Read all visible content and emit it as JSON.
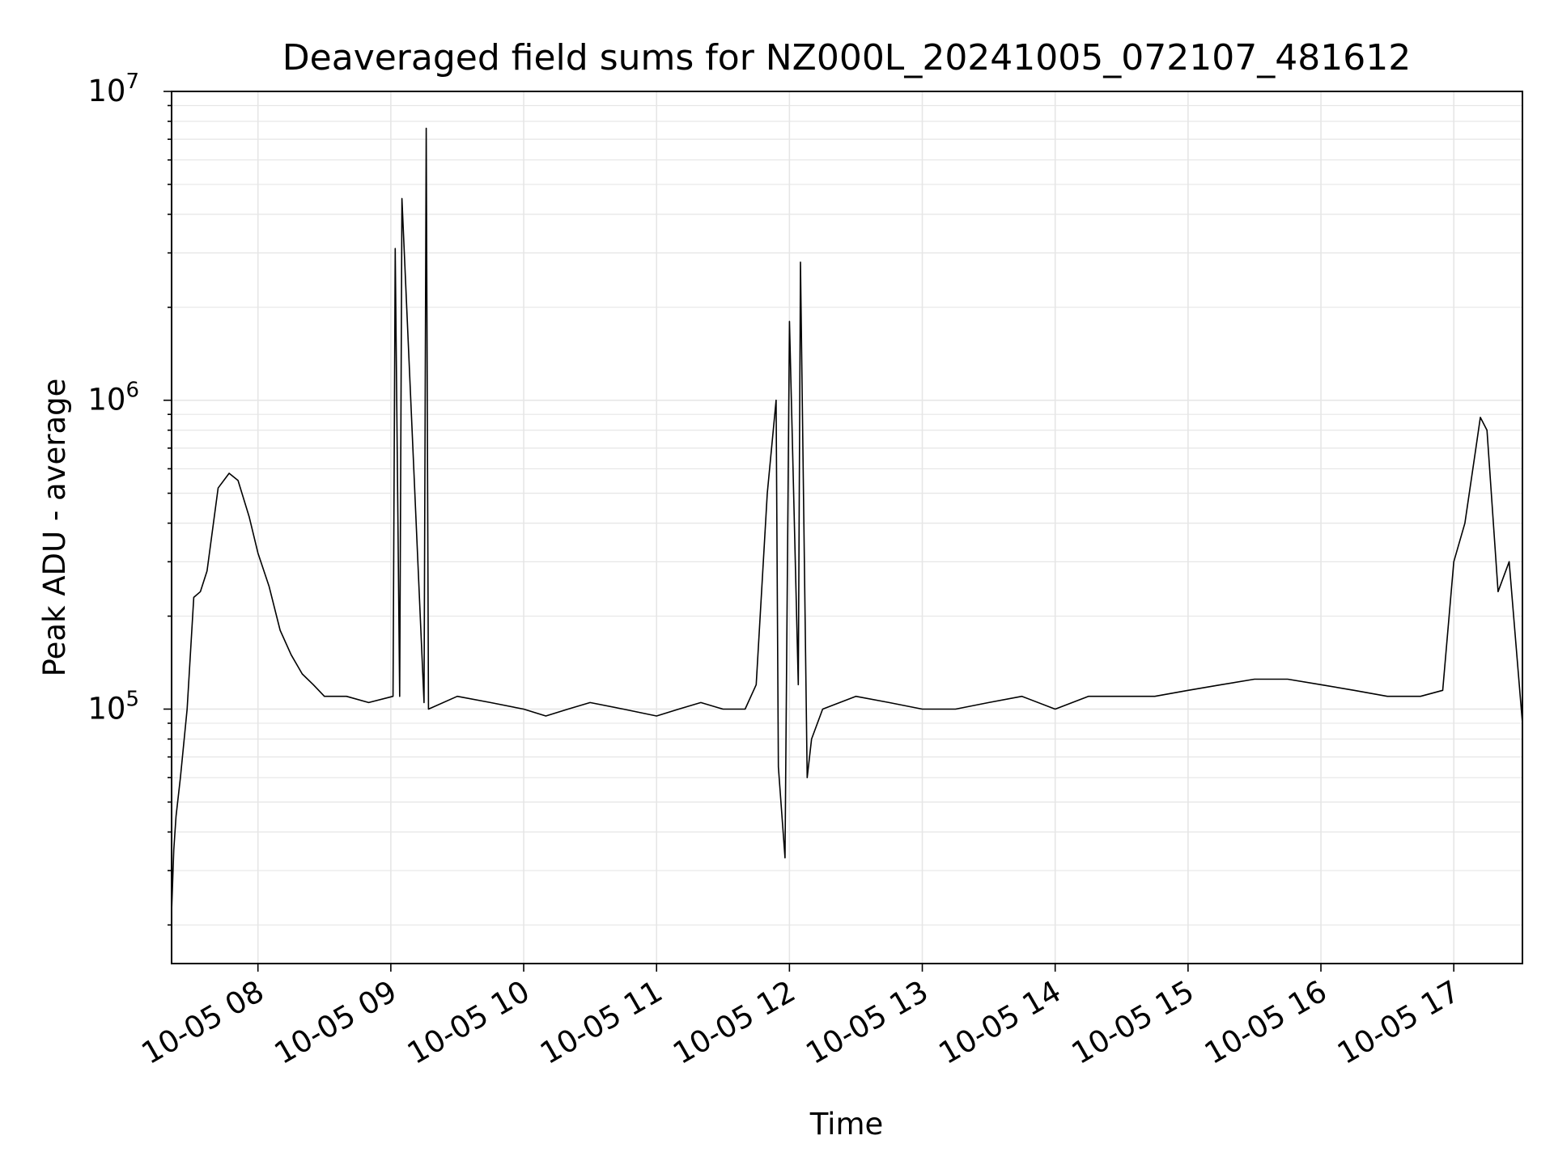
{
  "chart_data": {
    "type": "line",
    "title": "Deaveraged field sums for NZ000L_20241005_072107_481612",
    "xlabel": "Time",
    "ylabel": "Peak ADU - average",
    "yscale": "log",
    "ylim": [
      15000,
      10000000
    ],
    "xlim": [
      "2024-10-05 07:21",
      "2024-10-05 17:31"
    ],
    "grid": true,
    "line_color": "#000000",
    "x_ticks": [
      "10-05 08",
      "10-05 09",
      "10-05 10",
      "10-05 11",
      "10-05 12",
      "10-05 13",
      "10-05 14",
      "10-05 15",
      "10-05 16",
      "10-05 17"
    ],
    "y_ticks": [
      {
        "base": "10",
        "exp": "5"
      },
      {
        "base": "10",
        "exp": "6"
      },
      {
        "base": "10",
        "exp": "7"
      }
    ],
    "series": [
      {
        "x": [
          "2024-10-05 07:21",
          "2024-10-05 07:22",
          "2024-10-05 07:23",
          "2024-10-05 07:25",
          "2024-10-05 07:28",
          "2024-10-05 07:31",
          "2024-10-05 07:34",
          "2024-10-05 07:37",
          "2024-10-05 07:42",
          "2024-10-05 07:47",
          "2024-10-05 07:51",
          "2024-10-05 07:56",
          "2024-10-05 08:00",
          "2024-10-05 08:05",
          "2024-10-05 08:10",
          "2024-10-05 08:15",
          "2024-10-05 08:20",
          "2024-10-05 08:25",
          "2024-10-05 08:30",
          "2024-10-05 08:35",
          "2024-10-05 08:40",
          "2024-10-05 08:50",
          "2024-10-05 09:01",
          "2024-10-05 09:02",
          "2024-10-05 09:04",
          "2024-10-05 09:05",
          "2024-10-05 09:15",
          "2024-10-05 09:16",
          "2024-10-05 09:17",
          "2024-10-05 09:30",
          "2024-10-05 09:45",
          "2024-10-05 10:00",
          "2024-10-05 10:10",
          "2024-10-05 10:20",
          "2024-10-05 10:30",
          "2024-10-05 10:45",
          "2024-10-05 11:00",
          "2024-10-05 11:10",
          "2024-10-05 11:20",
          "2024-10-05 11:30",
          "2024-10-05 11:40",
          "2024-10-05 11:45",
          "2024-10-05 11:50",
          "2024-10-05 11:54",
          "2024-10-05 11:55",
          "2024-10-05 11:58",
          "2024-10-05 12:00",
          "2024-10-05 12:04",
          "2024-10-05 12:05",
          "2024-10-05 12:08",
          "2024-10-05 12:10",
          "2024-10-05 12:15",
          "2024-10-05 12:30",
          "2024-10-05 12:45",
          "2024-10-05 13:00",
          "2024-10-05 13:15",
          "2024-10-05 13:30",
          "2024-10-05 13:45",
          "2024-10-05 14:00",
          "2024-10-05 14:15",
          "2024-10-05 14:30",
          "2024-10-05 14:45",
          "2024-10-05 15:00",
          "2024-10-05 15:15",
          "2024-10-05 15:30",
          "2024-10-05 15:45",
          "2024-10-05 16:00",
          "2024-10-05 16:15",
          "2024-10-05 16:30",
          "2024-10-05 16:45",
          "2024-10-05 16:55",
          "2024-10-05 17:00",
          "2024-10-05 17:05",
          "2024-10-05 17:10",
          "2024-10-05 17:12",
          "2024-10-05 17:15",
          "2024-10-05 17:20",
          "2024-10-05 17:25",
          "2024-10-05 17:31"
        ],
        "y": [
          22000,
          35000,
          45000,
          60000,
          100000,
          230000,
          240000,
          280000,
          520000,
          580000,
          550000,
          420000,
          320000,
          250000,
          180000,
          150000,
          130000,
          120000,
          110000,
          110000,
          110000,
          105000,
          110000,
          3100000,
          110000,
          4500000,
          105000,
          7600000,
          100000,
          110000,
          105000,
          100000,
          95000,
          100000,
          105000,
          100000,
          95000,
          100000,
          105000,
          100000,
          100000,
          120000,
          500000,
          1000000,
          65000,
          33000,
          1800000,
          120000,
          2800000,
          60000,
          80000,
          100000,
          110000,
          105000,
          100000,
          100000,
          105000,
          110000,
          100000,
          110000,
          110000,
          110000,
          115000,
          120000,
          125000,
          125000,
          120000,
          115000,
          110000,
          110000,
          115000,
          300000,
          400000,
          700000,
          880000,
          800000,
          240000,
          300000,
          90000
        ]
      }
    ]
  }
}
